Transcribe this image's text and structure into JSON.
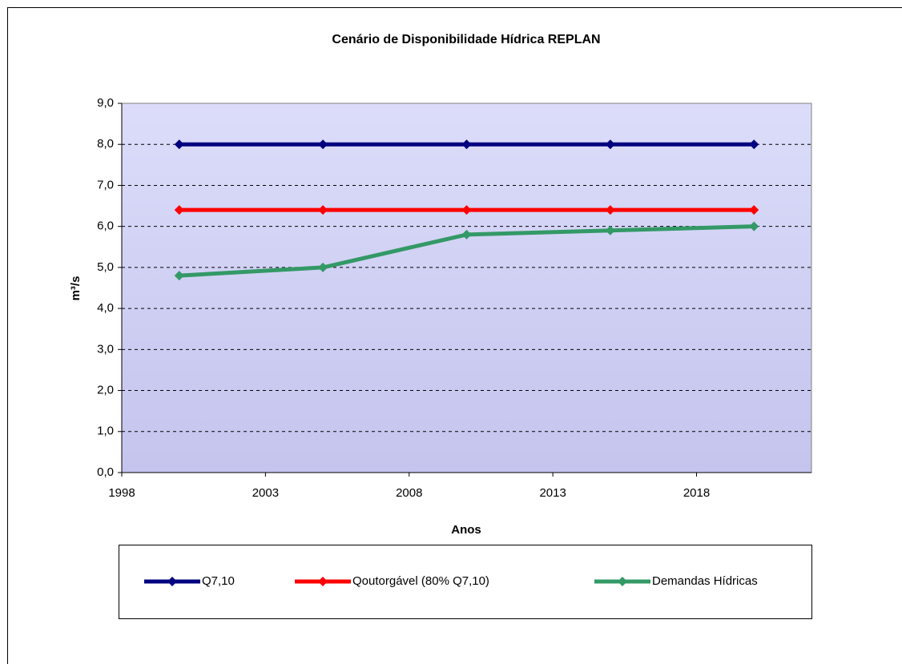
{
  "chart_data": {
    "type": "line",
    "title": "Cenário de Disponibilidade Hídrica REPLAN",
    "y_label": "m³/s",
    "x_label": "Anos",
    "x": [
      2000,
      2005,
      2010,
      2015,
      2020
    ],
    "series": [
      {
        "name": "Q7,10",
        "color": "#000080",
        "values": [
          8.0,
          8.0,
          8.0,
          8.0,
          8.0
        ]
      },
      {
        "name": "Qoutorgável (80% Q7,10)",
        "color": "#ff0000",
        "values": [
          6.4,
          6.4,
          6.4,
          6.4,
          6.4
        ]
      },
      {
        "name": "Demandas Hídricas",
        "color": "#339966",
        "values": [
          4.8,
          5.0,
          5.8,
          5.9,
          6.0
        ]
      }
    ],
    "xlim": [
      1998,
      2022
    ],
    "xticks": [
      1998,
      2003,
      2008,
      2013,
      2018
    ],
    "ylim": [
      0,
      9
    ],
    "yticks": [
      {
        "value": 0,
        "label": "0,0"
      },
      {
        "value": 1,
        "label": "1,0"
      },
      {
        "value": 2,
        "label": "2,0"
      },
      {
        "value": 3,
        "label": "3,0"
      },
      {
        "value": 4,
        "label": "4,0"
      },
      {
        "value": 5,
        "label": "5,0"
      },
      {
        "value": 6,
        "label": "6,0"
      },
      {
        "value": 7,
        "label": "7,0"
      },
      {
        "value": 8,
        "label": "8,0"
      },
      {
        "value": 9,
        "label": "9,0"
      }
    ],
    "grid": true,
    "legend": "bottom"
  }
}
